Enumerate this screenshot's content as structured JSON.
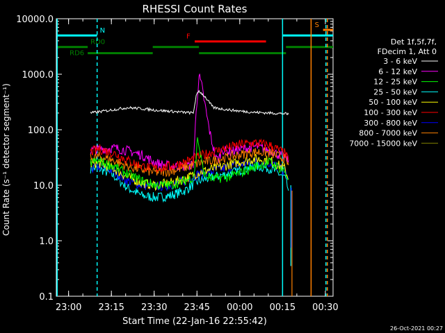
{
  "chart_data": {
    "type": "line",
    "title": "RHESSI Count Rates",
    "xlabel": "Start Time (22-Jan-16 22:55:42)",
    "ylabel": "Count Rate (s⁻¹ detector segment⁻¹)",
    "x_unit": "minutes after 22:55:42",
    "xlim": [
      0,
      97
    ],
    "ylim": [
      0.1,
      10000
    ],
    "yscale": "log",
    "x_ticks": [
      {
        "label": "23:00",
        "x": 4.3
      },
      {
        "label": "23:15",
        "x": 19.3
      },
      {
        "label": "23:30",
        "x": 34.3
      },
      {
        "label": "23:45",
        "x": 49.3
      },
      {
        "label": "00:00",
        "x": 64.3
      },
      {
        "label": "00:15",
        "x": 79.3
      },
      {
        "label": "00:30",
        "x": 94.3
      }
    ],
    "y_ticks": [
      {
        "label": "0.1",
        "v": 0.1
      },
      {
        "label": "1.0",
        "v": 1
      },
      {
        "label": "10.0",
        "v": 10
      },
      {
        "label": "100.0",
        "v": 100
      },
      {
        "label": "1000.0",
        "v": 1000
      },
      {
        "label": "10000.0",
        "v": 10000
      }
    ],
    "legend": {
      "placement": "right",
      "header": [
        "Det 1f,5f,7f,",
        "FDecim 1, Att 0"
      ]
    },
    "series": [
      {
        "name": "3 - 6 keV",
        "color": "#ffffff",
        "x": [
          12,
          15,
          20,
          25,
          30,
          35,
          40,
          45,
          48,
          49,
          50,
          52,
          55,
          60,
          65,
          70,
          75,
          80,
          81.4
        ],
        "y": [
          200,
          210,
          230,
          250,
          240,
          225,
          215,
          205,
          200,
          400,
          500,
          400,
          250,
          230,
          215,
          205,
          200,
          195,
          190
        ]
      },
      {
        "name": "6 - 12 keV",
        "color": "#ff00ff",
        "x": [
          12,
          15,
          20,
          25,
          30,
          35,
          40,
          45,
          48,
          49,
          50,
          51,
          52,
          53,
          54,
          55,
          56,
          57,
          58,
          60,
          63,
          65,
          70,
          75,
          80,
          81.4
        ],
        "y": [
          42,
          45,
          47,
          42,
          35,
          25,
          22,
          22,
          24,
          200,
          950,
          600,
          300,
          150,
          80,
          48,
          30,
          30,
          45,
          40,
          42,
          45,
          50,
          42,
          32,
          28
        ]
      },
      {
        "name": "12 - 25 keV",
        "color": "#00ff00",
        "x": [
          12,
          15,
          20,
          25,
          30,
          35,
          40,
          45,
          48,
          49,
          49.5,
          50,
          51,
          52,
          55,
          60,
          65,
          70,
          75,
          80,
          81.4
        ],
        "y": [
          26,
          27,
          22,
          16,
          12,
          10,
          10,
          12,
          14,
          30,
          80,
          50,
          25,
          15,
          13,
          14,
          17,
          22,
          26,
          18,
          13
        ]
      },
      {
        "name": "25 - 50 keV",
        "color": "#00ffff",
        "x": [
          12,
          15,
          20,
          25,
          30,
          35,
          40,
          45,
          50,
          55,
          60,
          65,
          70,
          75,
          80,
          81.4
        ],
        "y": [
          20,
          20,
          15,
          9,
          6.5,
          6,
          6.5,
          8,
          12,
          14,
          16,
          19,
          22,
          20,
          14,
          8
        ]
      },
      {
        "name": "50 - 100 keV",
        "color": "#ffff00",
        "x": [
          12,
          15,
          20,
          25,
          30,
          35,
          40,
          45,
          50,
          55,
          60,
          65,
          70,
          75,
          80,
          81.4
        ],
        "y": [
          24,
          25,
          20,
          14,
          11,
          10,
          11,
          13,
          17,
          20,
          23,
          27,
          30,
          28,
          20,
          13
        ]
      },
      {
        "name": "100 - 300 keV",
        "color": "#ff0000",
        "x": [
          12,
          15,
          20,
          25,
          30,
          35,
          40,
          45,
          50,
          55,
          60,
          65,
          70,
          75,
          80,
          81.4
        ],
        "y": [
          40,
          45,
          38,
          28,
          22,
          20,
          22,
          26,
          33,
          40,
          47,
          55,
          58,
          52,
          38,
          28
        ]
      },
      {
        "name": "300 - 800 keV",
        "color": "#0000ff",
        "x": [
          12,
          15,
          20,
          25,
          30,
          35,
          40,
          45,
          50,
          55,
          60,
          65,
          70,
          75,
          80,
          81.4
        ],
        "y": [
          20,
          22,
          18,
          12,
          10,
          9.5,
          10,
          12,
          16,
          18,
          21,
          24,
          26,
          25,
          18,
          13
        ]
      },
      {
        "name": "800 - 7000 keV",
        "color": "#ff8000",
        "x": [
          12,
          15,
          20,
          25,
          30,
          35,
          40,
          45,
          50,
          55,
          60,
          65,
          70,
          75,
          80,
          81.4
        ],
        "y": [
          30,
          33,
          28,
          22,
          19,
          17,
          18,
          21,
          25,
          28,
          32,
          36,
          40,
          38,
          30,
          23
        ]
      },
      {
        "name": "7000 - 15000 keV",
        "color": "#808000",
        "x": [],
        "y": []
      }
    ],
    "vertical_lines": [
      {
        "x": 0.3,
        "color": "#00ffff",
        "style": "solid"
      },
      {
        "x": 14.3,
        "color": "#00ffff",
        "style": "dashed"
      },
      {
        "x": 79.3,
        "color": "#00ffff",
        "style": "solid"
      },
      {
        "x": 89.3,
        "color": "#ff8000",
        "style": "solid"
      },
      {
        "x": 94.5,
        "color": "#00ffff",
        "style": "dashed"
      },
      {
        "x": 95.0,
        "color": "#ff8000",
        "style": "dashed"
      }
    ],
    "flag_bars": [
      {
        "label": "N",
        "color": "#00ffff",
        "v": 5000,
        "segments": [
          [
            0.3,
            14.3
          ],
          [
            79.3,
            97
          ]
        ]
      },
      {
        "label": "RD0",
        "color": "#008000",
        "v": 3100,
        "segments": [
          [
            0.3,
            11
          ],
          [
            33.8,
            50
          ],
          [
            80.5,
            97
          ]
        ]
      },
      {
        "label": "RD6",
        "color": "#008000",
        "v": 2400,
        "segments": [
          [
            11,
            33.8
          ],
          [
            50,
            80.5
          ]
        ]
      },
      {
        "label": "F",
        "color": "#ff0000",
        "v": 3900,
        "segments": [
          [
            48.5,
            73.5
          ]
        ]
      },
      {
        "label": "S",
        "color": "#ff8000",
        "v": 6300,
        "segments": [
          [
            93.5,
            97
          ]
        ]
      }
    ],
    "drops": [
      {
        "color": "#00ffff",
        "x": 82.2,
        "from": 10,
        "to": 0.35
      },
      {
        "color": "#0000ff",
        "x": 82.4,
        "from": 9,
        "to": 0.75
      },
      {
        "color": "#ff8000",
        "x": 82.6,
        "from": 8,
        "to": 0.1
      }
    ]
  },
  "footer": {
    "timestamp": "26-Oct-2021 00:27"
  }
}
